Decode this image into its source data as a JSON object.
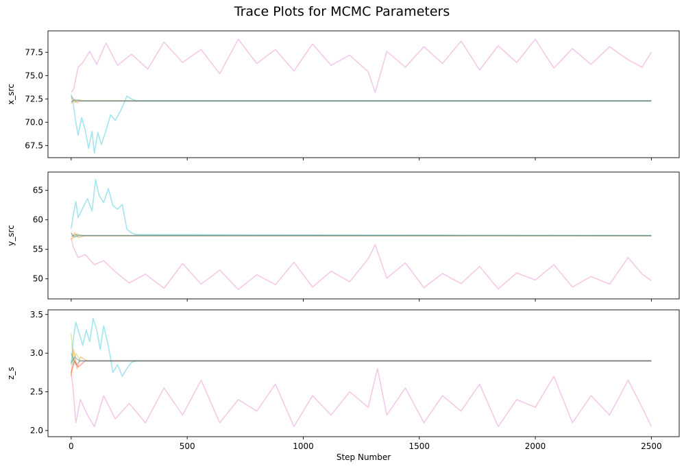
{
  "figure": {
    "title": "Trace Plots for MCMC Parameters"
  },
  "chart_data": [
    {
      "type": "line",
      "ylabel": "x_src",
      "xlabel": "",
      "xlim": [
        -100,
        2620
      ],
      "ylim": [
        66.2,
        79.8
      ],
      "xticks": [
        0,
        500,
        1000,
        1500,
        2000,
        2500
      ],
      "show_xticklabels": false,
      "yticks": [
        67.5,
        70.0,
        72.5,
        75.0,
        77.5
      ],
      "ytick_labels": [
        "67.5",
        "70.0",
        "72.5",
        "75.0",
        "77.5"
      ],
      "grid": false,
      "converged_value": 72.3,
      "series": [
        {
          "color": "#e377c2",
          "steps": [
            0,
            10,
            30,
            50,
            80,
            110,
            150,
            200,
            260,
            330,
            400,
            480,
            560,
            640,
            720,
            800,
            880,
            960,
            1040,
            1120,
            1200,
            1280,
            1310,
            1360,
            1440,
            1520,
            1600,
            1680,
            1760,
            1840,
            1920,
            2000,
            2080,
            2160,
            2240,
            2320,
            2400,
            2460,
            2500
          ],
          "values": [
            73.2,
            73.5,
            75.9,
            76.4,
            77.6,
            76.2,
            78.5,
            76.1,
            77.3,
            75.7,
            78.6,
            76.4,
            77.8,
            75.2,
            78.9,
            76.3,
            77.8,
            75.5,
            78.4,
            76.1,
            77.2,
            75.4,
            73.2,
            77.6,
            75.9,
            78.1,
            76.3,
            78.7,
            75.6,
            78.2,
            76.4,
            78.9,
            75.8,
            77.9,
            76.2,
            78.1,
            76.7,
            75.9,
            77.5
          ]
        },
        {
          "color": "#17becf",
          "steps": [
            0,
            10,
            20,
            30,
            45,
            60,
            75,
            90,
            100,
            115,
            130,
            150,
            170,
            190,
            210,
            225,
            240,
            260,
            280,
            2500
          ],
          "values": [
            73.0,
            71.8,
            70.0,
            68.6,
            70.5,
            69.2,
            67.2,
            69.0,
            66.7,
            68.9,
            67.6,
            69.1,
            70.8,
            70.2,
            71.1,
            71.9,
            72.8,
            72.5,
            72.3,
            72.3
          ]
        },
        {
          "color": "#ff7f0e",
          "steps": [
            0,
            10,
            25,
            40,
            70,
            2500
          ],
          "values": [
            72.0,
            72.4,
            72.1,
            72.35,
            72.3,
            72.3
          ]
        },
        {
          "color": "#bcbd22",
          "steps": [
            0,
            15,
            30,
            50,
            2500
          ],
          "values": [
            72.6,
            72.1,
            72.4,
            72.3,
            72.3
          ]
        },
        {
          "color": "#7f7f7f",
          "steps": [
            0,
            10,
            20,
            40,
            2500
          ],
          "values": [
            72.8,
            72.5,
            72.3,
            72.25,
            72.25
          ]
        },
        {
          "color": "#1f77b4",
          "steps": [
            0,
            20,
            40,
            2500
          ],
          "values": [
            72.2,
            72.4,
            72.3,
            72.3
          ]
        }
      ]
    },
    {
      "type": "line",
      "ylabel": "y_src",
      "xlabel": "",
      "xlim": [
        -100,
        2620
      ],
      "ylim": [
        46.6,
        68.1
      ],
      "xticks": [
        0,
        500,
        1000,
        1500,
        2000,
        2500
      ],
      "show_xticklabels": false,
      "yticks": [
        50,
        55,
        60,
        65
      ],
      "ytick_labels": [
        "50",
        "55",
        "60",
        "65"
      ],
      "grid": false,
      "converged_value": 57.3,
      "series": [
        {
          "color": "#e377c2",
          "steps": [
            0,
            10,
            30,
            60,
            100,
            140,
            190,
            250,
            320,
            400,
            480,
            560,
            640,
            720,
            800,
            880,
            960,
            1040,
            1120,
            1200,
            1280,
            1310,
            1360,
            1440,
            1520,
            1600,
            1680,
            1760,
            1840,
            1920,
            2000,
            2080,
            2160,
            2240,
            2320,
            2400,
            2460,
            2500
          ],
          "values": [
            56.9,
            55.3,
            53.6,
            54.1,
            52.4,
            53.1,
            51.2,
            49.3,
            50.8,
            48.4,
            52.6,
            49.1,
            51.5,
            48.2,
            50.7,
            49.0,
            52.8,
            48.6,
            51.3,
            49.5,
            53.4,
            55.8,
            50.1,
            52.7,
            48.5,
            50.9,
            49.2,
            52.1,
            48.3,
            51.0,
            49.8,
            52.4,
            48.6,
            50.4,
            49.1,
            53.6,
            50.8,
            49.7
          ]
        },
        {
          "color": "#17becf",
          "steps": [
            0,
            10,
            20,
            30,
            50,
            70,
            90,
            105,
            120,
            140,
            160,
            180,
            200,
            220,
            240,
            260,
            280,
            2500
          ],
          "values": [
            58.5,
            61.0,
            63.1,
            60.4,
            62.0,
            63.6,
            61.5,
            66.8,
            64.2,
            62.9,
            65.3,
            62.4,
            61.8,
            62.6,
            58.4,
            57.8,
            57.5,
            57.3
          ]
        },
        {
          "color": "#ff7f0e",
          "steps": [
            0,
            15,
            30,
            60,
            2500
          ],
          "values": [
            56.6,
            57.8,
            57.0,
            57.3,
            57.3
          ]
        },
        {
          "color": "#bcbd22",
          "steps": [
            0,
            10,
            25,
            50,
            2500
          ],
          "values": [
            57.9,
            56.9,
            57.6,
            57.35,
            57.35
          ]
        },
        {
          "color": "#7f7f7f",
          "steps": [
            0,
            20,
            40,
            2500
          ],
          "values": [
            57.2,
            57.5,
            57.3,
            57.3
          ]
        },
        {
          "color": "#1f77b4",
          "steps": [
            0,
            15,
            35,
            2500
          ],
          "values": [
            57.7,
            57.1,
            57.35,
            57.35
          ]
        }
      ]
    },
    {
      "type": "line",
      "ylabel": "z_s",
      "xlabel": "Step Number",
      "xlim": [
        -100,
        2620
      ],
      "ylim": [
        1.92,
        3.56
      ],
      "xticks": [
        0,
        500,
        1000,
        1500,
        2000,
        2500
      ],
      "xtick_labels": [
        "0",
        "500",
        "1000",
        "1500",
        "2000",
        "2500"
      ],
      "show_xticklabels": true,
      "yticks": [
        2.0,
        2.5,
        3.0,
        3.5
      ],
      "ytick_labels": [
        "2.0",
        "2.5",
        "3.0",
        "3.5"
      ],
      "grid": false,
      "converged_value": 2.9,
      "series": [
        {
          "color": "#e377c2",
          "steps": [
            0,
            8,
            20,
            40,
            70,
            100,
            140,
            190,
            250,
            320,
            400,
            480,
            560,
            640,
            720,
            800,
            880,
            960,
            1040,
            1120,
            1200,
            1280,
            1320,
            1360,
            1440,
            1520,
            1600,
            1680,
            1760,
            1840,
            1920,
            2000,
            2080,
            2160,
            2240,
            2320,
            2400,
            2460,
            2500
          ],
          "values": [
            2.75,
            2.55,
            2.1,
            2.4,
            2.2,
            2.05,
            2.45,
            2.15,
            2.35,
            2.1,
            2.55,
            2.2,
            2.65,
            2.1,
            2.4,
            2.25,
            2.6,
            2.05,
            2.45,
            2.2,
            2.5,
            2.3,
            2.8,
            2.2,
            2.55,
            2.1,
            2.45,
            2.25,
            2.6,
            2.05,
            2.4,
            2.3,
            2.7,
            2.1,
            2.45,
            2.2,
            2.65,
            2.3,
            2.05
          ]
        },
        {
          "color": "#17becf",
          "steps": [
            0,
            10,
            20,
            35,
            50,
            65,
            80,
            95,
            110,
            125,
            140,
            160,
            180,
            200,
            220,
            240,
            260,
            280,
            2500
          ],
          "values": [
            2.85,
            3.2,
            3.4,
            3.25,
            3.1,
            3.3,
            3.15,
            3.45,
            3.3,
            3.05,
            3.35,
            3.1,
            2.75,
            2.85,
            2.7,
            2.8,
            2.88,
            2.9,
            2.9
          ]
        },
        {
          "color": "#ff7f0e",
          "steps": [
            0,
            10,
            25,
            40,
            70,
            2500
          ],
          "values": [
            2.7,
            3.05,
            2.8,
            2.95,
            2.9,
            2.9
          ]
        },
        {
          "color": "#bcbd22",
          "steps": [
            0,
            10,
            20,
            40,
            2500
          ],
          "values": [
            3.25,
            2.85,
            3.0,
            2.9,
            2.9
          ]
        },
        {
          "color": "#d62728",
          "steps": [
            0,
            15,
            30,
            60,
            2500
          ],
          "values": [
            2.75,
            2.9,
            2.82,
            2.9,
            2.9
          ]
        },
        {
          "color": "#7f7f7f",
          "steps": [
            0,
            20,
            40,
            2500
          ],
          "values": [
            3.0,
            2.85,
            2.9,
            2.9
          ]
        },
        {
          "color": "#1f77b4",
          "steps": [
            0,
            15,
            35,
            2500
          ],
          "values": [
            2.88,
            2.95,
            2.9,
            2.9
          ]
        }
      ]
    }
  ]
}
